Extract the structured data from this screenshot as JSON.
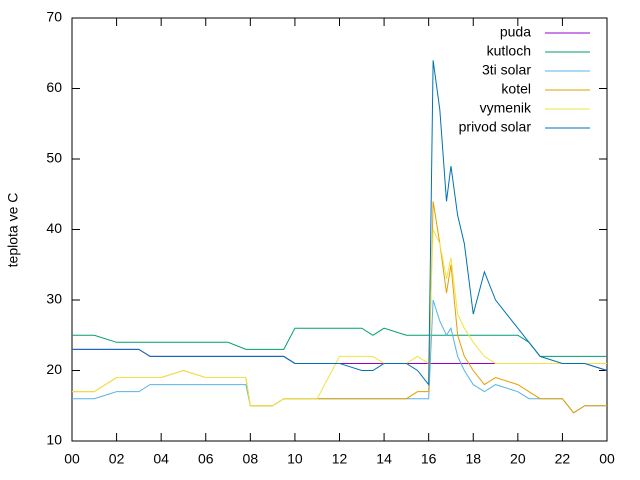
{
  "chart_data": {
    "type": "line",
    "ylabel": "teplota ve C",
    "x": [
      0,
      1,
      2,
      3,
      3.5,
      4,
      5,
      6,
      7,
      7.8,
      8,
      9,
      9.5,
      10,
      11,
      12,
      13,
      13.5,
      14,
      15,
      15.5,
      16,
      16.2,
      16.5,
      16.8,
      17,
      17.3,
      17.6,
      18,
      18.5,
      19,
      20,
      20.5,
      21,
      22,
      22.5,
      23,
      24
    ],
    "series": [
      {
        "name": "puda",
        "color": "#9400d3",
        "values": [
          23,
          23,
          23,
          23,
          22,
          22,
          22,
          22,
          22,
          22,
          22,
          22,
          22,
          21,
          21,
          21,
          21,
          21,
          21,
          21,
          21,
          21,
          21,
          21,
          21,
          21,
          21,
          21,
          21,
          21,
          21,
          21,
          21,
          21,
          21,
          21,
          21,
          20
        ]
      },
      {
        "name": "kutloch",
        "color": "#009e73",
        "values": [
          25,
          25,
          24,
          24,
          24,
          24,
          24,
          24,
          24,
          23,
          23,
          23,
          23,
          26,
          26,
          26,
          26,
          25,
          26,
          25,
          25,
          25,
          25,
          25,
          25,
          25,
          25,
          25,
          25,
          25,
          25,
          25,
          24,
          22,
          22,
          22,
          22,
          22
        ]
      },
      {
        "name": "3ti solar",
        "color": "#56b4e9",
        "values": [
          16,
          16,
          17,
          17,
          18,
          18,
          18,
          18,
          18,
          18,
          15,
          15,
          16,
          16,
          16,
          16,
          16,
          16,
          16,
          16,
          16,
          16,
          30,
          27,
          25,
          26,
          22,
          20,
          18,
          17,
          18,
          17,
          16,
          16,
          16,
          14,
          15,
          15
        ]
      },
      {
        "name": "kotel",
        "color": "#e69f00",
        "values": [
          17,
          17,
          19,
          19,
          19,
          19,
          20,
          19,
          19,
          19,
          15,
          15,
          16,
          16,
          16,
          16,
          16,
          16,
          16,
          16,
          17,
          17,
          44,
          38,
          31,
          35,
          25,
          22,
          20,
          18,
          19,
          18,
          17,
          16,
          16,
          14,
          15,
          15
        ]
      },
      {
        "name": "vymenik",
        "color": "#f0e442",
        "values": [
          17,
          17,
          19,
          19,
          19,
          19,
          20,
          19,
          19,
          19,
          15,
          15,
          16,
          16,
          16,
          22,
          22,
          22,
          21,
          21,
          22,
          21,
          40,
          38,
          33,
          36,
          28,
          26,
          24,
          22,
          21,
          21,
          21,
          21,
          21,
          21,
          21,
          21
        ]
      },
      {
        "name": "privod solar",
        "color": "#0072b2",
        "values": [
          23,
          23,
          23,
          23,
          22,
          22,
          22,
          22,
          22,
          22,
          22,
          22,
          22,
          21,
          21,
          21,
          20,
          20,
          21,
          21,
          20,
          18,
          64,
          57,
          44,
          49,
          42,
          38,
          28,
          34,
          30,
          26,
          24,
          22,
          21,
          21,
          21,
          20
        ]
      }
    ],
    "xlim": [
      0,
      24
    ],
    "xticks": [
      {
        "value": 0,
        "label": "00"
      },
      {
        "value": 2,
        "label": "02"
      },
      {
        "value": 4,
        "label": "04"
      },
      {
        "value": 6,
        "label": "06"
      },
      {
        "value": 8,
        "label": "08"
      },
      10,
      12,
      14,
      16,
      18,
      20,
      22,
      {
        "value": 24,
        "label": "00"
      }
    ],
    "ylim": [
      10,
      70
    ],
    "yticks": [
      10,
      20,
      30,
      40,
      50,
      60,
      70
    ],
    "legend": "top-right"
  }
}
